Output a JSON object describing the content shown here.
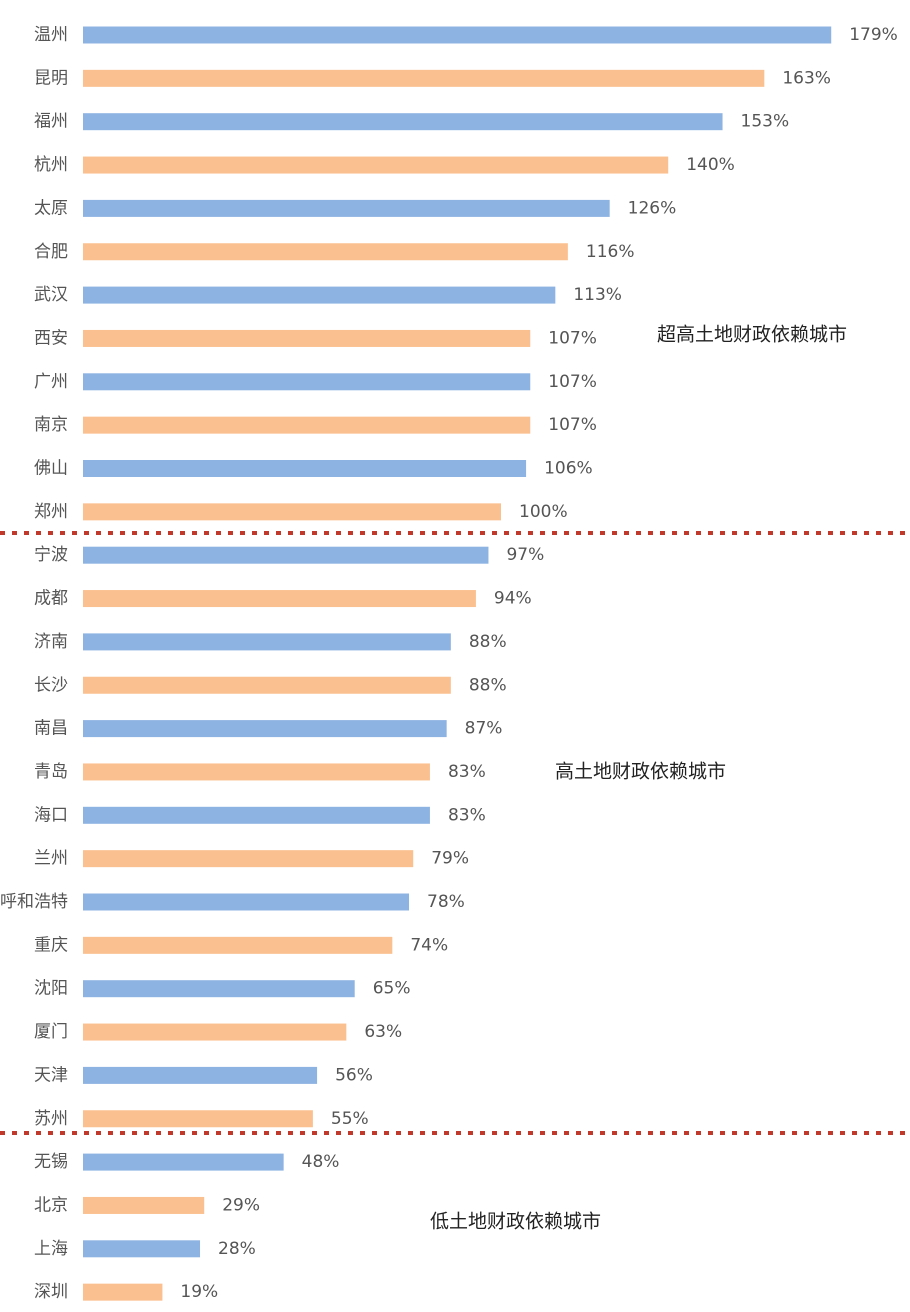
{
  "chart_data": {
    "type": "hbar",
    "categories": [
      "温州",
      "昆明",
      "福州",
      "杭州",
      "太原",
      "合肥",
      "武汉",
      "西安",
      "广州",
      "南京",
      "佛山",
      "郑州",
      "宁波",
      "成都",
      "济南",
      "长沙",
      "南昌",
      "青岛",
      "海口",
      "兰州",
      "呼和浩特",
      "重庆",
      "沈阳",
      "厦门",
      "天津",
      "苏州",
      "无锡",
      "北京",
      "上海",
      "深圳"
    ],
    "values": [
      179,
      163,
      153,
      140,
      126,
      116,
      113,
      107,
      107,
      107,
      106,
      100,
      97,
      94,
      88,
      88,
      87,
      83,
      83,
      79,
      78,
      74,
      65,
      63,
      56,
      55,
      48,
      29,
      28,
      19
    ],
    "value_labels": [
      "179%",
      "163%",
      "153%",
      "140%",
      "126%",
      "116%",
      "113%",
      "107%",
      "107%",
      "107%",
      "106%",
      "100%",
      "97%",
      "94%",
      "88%",
      "88%",
      "87%",
      "83%",
      "83%",
      "79%",
      "78%",
      "74%",
      "65%",
      "63%",
      "56%",
      "55%",
      "48%",
      "29%",
      "28%",
      "19%"
    ],
    "colors": [
      "#8db3e2",
      "#fbc08f"
    ],
    "xlim": [
      0,
      200
    ],
    "annotations": [
      "超高土地财政依赖城市",
      "高土地财政依赖城市",
      "低土地财政依赖城市"
    ]
  }
}
